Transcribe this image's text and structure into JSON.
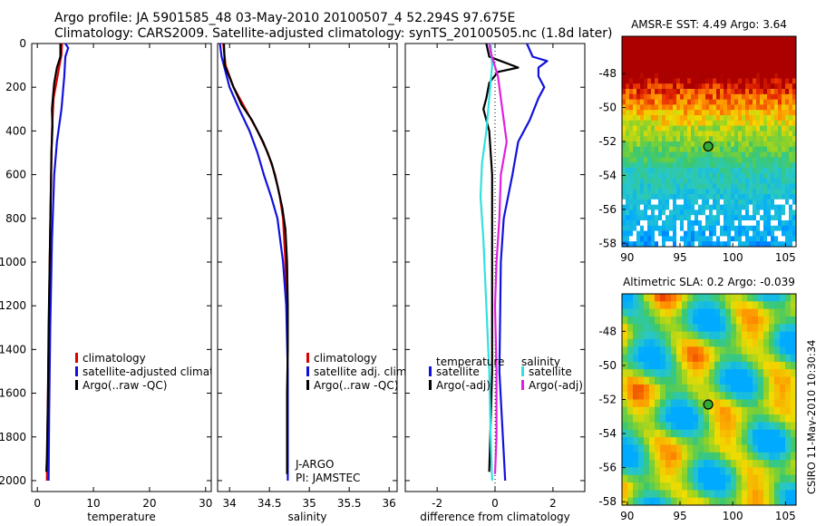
{
  "header": {
    "line1": "Argo profile: JA 5901585_48 03-May-2010 20100507_4 52.294S 97.675E",
    "line2": "Climatology: CARS2009. Satellite-adjusted climatology: synTS_20100505.nc (1.8d later)"
  },
  "side_label": "CSIRO 11-May-2010 10:30:34",
  "colors": {
    "red": "#dd0000",
    "blue": "#1111dd",
    "black": "#000000",
    "cyan": "#33e0e0",
    "magenta": "#e020e0",
    "grey": "#aaaaaa"
  },
  "chart_data": [
    {
      "type": "line",
      "xlabel": "temperature",
      "xlim": [
        -1,
        31
      ],
      "ylim": [
        2050,
        0
      ],
      "xticks": [
        0,
        10,
        20,
        30
      ],
      "yticks": [
        0,
        200,
        400,
        600,
        800,
        1000,
        1200,
        1400,
        1600,
        1800,
        2000
      ],
      "legend": [
        {
          "name": "climatology",
          "color": "red"
        },
        {
          "name": "satellite-adjusted climatology",
          "color": "blue"
        },
        {
          "name": "Argo(..raw -QC)",
          "color": "black"
        }
      ],
      "series": [
        {
          "name": "climatology",
          "color": "red",
          "points": [
            [
              4.4,
              0
            ],
            [
              4.3,
              50
            ],
            [
              3.6,
              150
            ],
            [
              2.9,
              250
            ],
            [
              2.6,
              400
            ],
            [
              2.4,
              700
            ],
            [
              2.2,
              1000
            ],
            [
              2.0,
              1400
            ],
            [
              1.8,
              1800
            ],
            [
              1.7,
              2000
            ]
          ]
        },
        {
          "name": "satellite-adjusted climatology",
          "color": "blue",
          "points": [
            [
              5.0,
              0
            ],
            [
              5.5,
              20
            ],
            [
              5.0,
              60
            ],
            [
              4.8,
              150
            ],
            [
              4.3,
              300
            ],
            [
              3.5,
              450
            ],
            [
              3.0,
              600
            ],
            [
              2.6,
              900
            ],
            [
              2.3,
              1300
            ],
            [
              2.1,
              1700
            ],
            [
              2.0,
              2000
            ]
          ]
        },
        {
          "name": "Argo(..raw -QC)",
          "color": "black",
          "points": [
            [
              4.1,
              0
            ],
            [
              4.1,
              60
            ],
            [
              3.5,
              110
            ],
            [
              3.0,
              180
            ],
            [
              2.8,
              240
            ],
            [
              2.6,
              300
            ],
            [
              2.7,
              380
            ],
            [
              2.5,
              500
            ],
            [
              2.4,
              700
            ],
            [
              2.2,
              1000
            ],
            [
              2.0,
              1300
            ],
            [
              1.9,
              1600
            ],
            [
              1.7,
              1900
            ],
            [
              1.6,
              1960
            ]
          ]
        }
      ]
    },
    {
      "type": "line",
      "xlabel": "salinity",
      "xlim": [
        33.85,
        36.1
      ],
      "ylim": [
        2050,
        0
      ],
      "xticks": [
        34,
        34.5,
        35,
        35.5,
        36
      ],
      "yticks": [
        0,
        200,
        400,
        600,
        800,
        1000,
        1200,
        1400,
        1600,
        1800,
        2000
      ],
      "legend": [
        {
          "name": "climatology",
          "color": "red"
        },
        {
          "name": "satellite adj. clim.",
          "color": "blue"
        },
        {
          "name": "Argo(..raw -QC)",
          "color": "black"
        }
      ],
      "annotation": [
        "J-ARGO",
        "PI: JAMSTEC"
      ],
      "series": [
        {
          "name": "climatology",
          "color": "red",
          "points": [
            [
              33.92,
              0
            ],
            [
              33.95,
              100
            ],
            [
              34.05,
              200
            ],
            [
              34.2,
              300
            ],
            [
              34.35,
              400
            ],
            [
              34.48,
              500
            ],
            [
              34.57,
              600
            ],
            [
              34.63,
              700
            ],
            [
              34.67,
              800
            ],
            [
              34.7,
              1000
            ],
            [
              34.72,
              1200
            ],
            [
              34.73,
              1400
            ]
          ]
        },
        {
          "name": "satellite adj. clim.",
          "color": "blue",
          "points": [
            [
              33.88,
              0
            ],
            [
              33.9,
              60
            ],
            [
              34.0,
              200
            ],
            [
              34.12,
              300
            ],
            [
              34.25,
              400
            ],
            [
              34.35,
              500
            ],
            [
              34.43,
              600
            ],
            [
              34.52,
              700
            ],
            [
              34.6,
              800
            ],
            [
              34.67,
              1000
            ],
            [
              34.71,
              1200
            ],
            [
              34.73,
              1500
            ],
            [
              34.73,
              2000
            ]
          ]
        },
        {
          "name": "Argo(..raw -QC)",
          "color": "black",
          "points": [
            [
              33.93,
              0
            ],
            [
              33.94,
              100
            ],
            [
              34.05,
              200
            ],
            [
              34.15,
              280
            ],
            [
              34.28,
              350
            ],
            [
              34.42,
              450
            ],
            [
              34.53,
              550
            ],
            [
              34.6,
              650
            ],
            [
              34.66,
              750
            ],
            [
              34.7,
              850
            ],
            [
              34.72,
              1000
            ],
            [
              34.73,
              1200
            ],
            [
              34.73,
              1400
            ],
            [
              34.72,
              1600
            ],
            [
              34.72,
              1800
            ],
            [
              34.72,
              1970
            ]
          ]
        }
      ]
    },
    {
      "type": "line",
      "xlabel": "difference from climatology",
      "xlim": [
        -3.1,
        3.1
      ],
      "ylim": [
        2050,
        0
      ],
      "xticks": [
        -2,
        0,
        2
      ],
      "yticks": [
        0,
        200,
        400,
        600,
        800,
        1000,
        1200,
        1400,
        1600,
        1800,
        2000
      ],
      "legend_left_title": "temperature",
      "legend_right_title": "salinity",
      "legend": [
        {
          "name": "satellite",
          "color": "blue",
          "group": "left"
        },
        {
          "name": "Argo(-adj)",
          "color": "black",
          "group": "left"
        },
        {
          "name": "satellite",
          "color": "cyan",
          "group": "right"
        },
        {
          "name": "Argo(-adj)",
          "color": "magenta",
          "group": "right"
        }
      ],
      "series": [
        {
          "name": "temperature satellite",
          "color": "blue",
          "points": [
            [
              1.1,
              0
            ],
            [
              1.3,
              60
            ],
            [
              1.8,
              80
            ],
            [
              1.5,
              110
            ],
            [
              1.5,
              150
            ],
            [
              1.7,
              200
            ],
            [
              1.5,
              250
            ],
            [
              1.2,
              350
            ],
            [
              0.8,
              450
            ],
            [
              0.6,
              600
            ],
            [
              0.3,
              800
            ],
            [
              0.2,
              1000
            ],
            [
              0.15,
              1500
            ],
            [
              0.35,
              2000
            ]
          ]
        },
        {
          "name": "temperature Argo(-adj)",
          "color": "black",
          "points": [
            [
              -0.3,
              0
            ],
            [
              -0.2,
              60
            ],
            [
              0.2,
              80
            ],
            [
              0.8,
              110
            ],
            [
              0.1,
              130
            ],
            [
              -0.2,
              180
            ],
            [
              -0.3,
              250
            ],
            [
              -0.4,
              300
            ],
            [
              -0.2,
              400
            ],
            [
              -0.1,
              600
            ],
            [
              -0.1,
              1000
            ],
            [
              -0.1,
              1500
            ],
            [
              -0.2,
              1960
            ]
          ]
        },
        {
          "name": "salinity satellite",
          "color": "cyan",
          "points": [
            [
              -0.15,
              0
            ],
            [
              -0.1,
              100
            ],
            [
              -0.2,
              250
            ],
            [
              -0.3,
              400
            ],
            [
              -0.45,
              550
            ],
            [
              -0.5,
              700
            ],
            [
              -0.4,
              900
            ],
            [
              -0.3,
              1200
            ],
            [
              -0.2,
              1500
            ],
            [
              -0.15,
              1800
            ],
            [
              -0.1,
              2000
            ]
          ]
        },
        {
          "name": "salinity Argo(-adj)",
          "color": "magenta",
          "points": [
            [
              -0.2,
              0
            ],
            [
              -0.15,
              40
            ],
            [
              0.1,
              150
            ],
            [
              0.25,
              300
            ],
            [
              0.4,
              450
            ],
            [
              0.2,
              600
            ],
            [
              0.15,
              800
            ],
            [
              0.05,
              1000
            ],
            [
              0.0,
              1200
            ],
            [
              0.05,
              1500
            ],
            [
              0.05,
              1800
            ],
            [
              0.0,
              1970
            ]
          ]
        }
      ]
    },
    {
      "type": "heatmap",
      "title": "AMSR-E SST: 4.49 Argo: 3.64",
      "xlim": [
        89.5,
        106
      ],
      "ylim": [
        -58.2,
        -45.8
      ],
      "xticks": [
        90,
        95,
        100,
        105
      ],
      "yticks": [
        -48,
        -50,
        -52,
        -54,
        -56,
        -58
      ],
      "marker": {
        "lon": 97.675,
        "lat": -52.294
      }
    },
    {
      "type": "heatmap",
      "title": "Altimetric SLA: 0.2 Argo: -0.039",
      "xlim": [
        89.5,
        106
      ],
      "ylim": [
        -58.2,
        -45.8
      ],
      "xticks": [
        90,
        95,
        100,
        105
      ],
      "yticks": [
        -48,
        -50,
        -52,
        -54,
        -56,
        -58
      ],
      "marker": {
        "lon": 97.675,
        "lat": -52.294
      }
    }
  ]
}
